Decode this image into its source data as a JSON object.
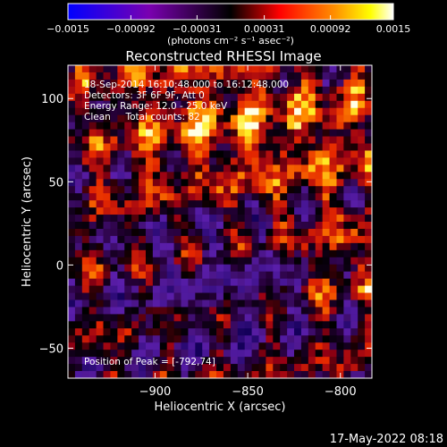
{
  "chart_data": {
    "type": "heatmap",
    "title": "Reconstructed RHESSI Image",
    "xlabel": "Heliocentric X (arcsec)",
    "ylabel": "Heliocentric Y (arcsec)",
    "xlim": [
      -947,
      -783
    ],
    "ylim": [
      -68,
      120
    ],
    "x_ticks": [
      -900,
      -850,
      -800
    ],
    "x_tick_labels": [
      "−900",
      "−850",
      "−800"
    ],
    "y_ticks": [
      -50,
      0,
      50,
      100
    ],
    "y_tick_labels": [
      "−50",
      "0",
      "50",
      "100"
    ],
    "colorbar": {
      "range": [
        -0.0015,
        0.0015
      ],
      "ticks": [
        -0.0015,
        -0.00092,
        -0.00031,
        0.00031,
        0.00092,
        0.0015
      ],
      "tick_labels": [
        "−0.0015",
        "−0.00092",
        "−0.00031",
        "0.00031",
        "0.00092",
        "0.0015"
      ],
      "label": "(photons cm⁻² s⁻¹ asec⁻²)"
    },
    "grid": false,
    "colormap_colors": [
      "#000000",
      "#0000ff",
      "#8000c0",
      "#ff0000",
      "#ff8000",
      "#ffff00",
      "#ffffff"
    ]
  },
  "annotations": {
    "line1": "18-Sep-2014 16:10:48.000 to 16:12:48.000",
    "line2": "Detectors: 3F 6F 9F, Att 0",
    "line3": "Energy Range: 12.0 - 25.0 keV",
    "line4": "Clean     Total counts: 82",
    "peak": "Position of Peak = [-792,74]"
  },
  "timestamp": "17-May-2022 08:18"
}
